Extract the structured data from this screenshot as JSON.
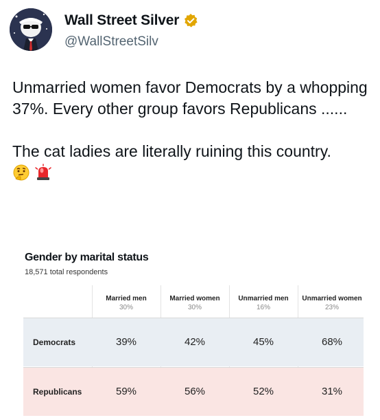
{
  "author": {
    "display_name": "Wall Street Silver",
    "handle": "@WallStreetSilv",
    "avatar_icon": "bull-avatar-icon",
    "verified_icon": "verified-badge-icon",
    "verified_color": "#e2a600"
  },
  "tweet": {
    "paragraph_1": "Unmarried women favor Democrats by a whopping 37%. Every other group favors Republicans ......",
    "paragraph_2": "The cat ladies are literally ruining this country.",
    "emojis": [
      "thinking-face-icon",
      "police-light-icon"
    ]
  },
  "media": {
    "title": "Gender by marital status",
    "subtitle": "18,571 total respondents",
    "columns": [
      {
        "label": "Married men",
        "share": "30%"
      },
      {
        "label": "Married women",
        "share": "30%"
      },
      {
        "label": "Unmarried men",
        "share": "16%"
      },
      {
        "label": "Unmarried women",
        "share": "23%"
      }
    ],
    "rows": [
      {
        "label": "Democrats",
        "values": [
          "39%",
          "42%",
          "45%",
          "68%"
        ],
        "color": "#e9eef3"
      },
      {
        "label": "Republicans",
        "values": [
          "59%",
          "56%",
          "52%",
          "31%"
        ],
        "color": "#fae5e3"
      }
    ]
  }
}
